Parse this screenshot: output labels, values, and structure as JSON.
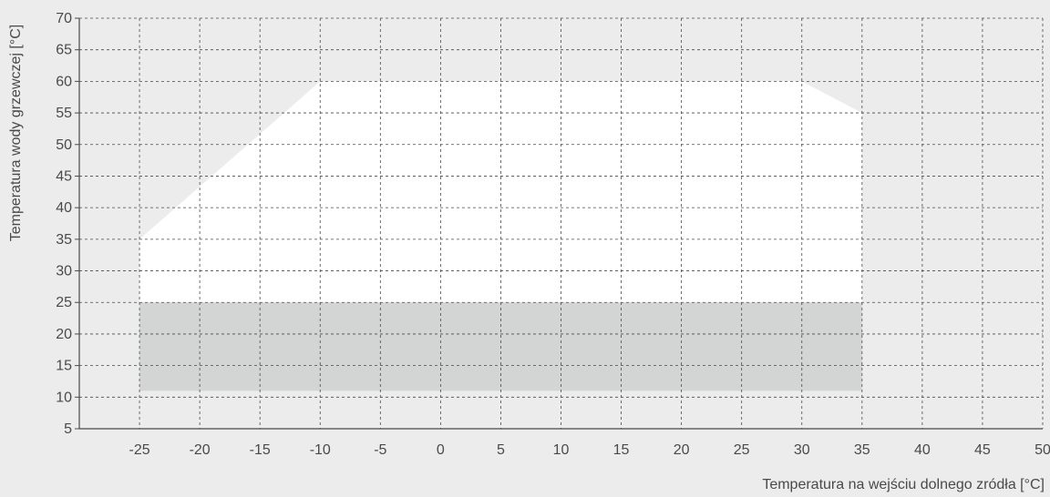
{
  "chart_data": {
    "type": "area",
    "title": "",
    "xlabel": "Temperatura na wejściu dolnego zródła [°C]",
    "ylabel": "Temperatura wody grzewczej [°C]",
    "xlim": [
      -30,
      50
    ],
    "ylim": [
      5,
      70
    ],
    "x_ticks": [
      -25,
      -20,
      -15,
      -10,
      -5,
      0,
      5,
      10,
      15,
      20,
      25,
      30,
      35,
      40,
      45,
      50
    ],
    "y_ticks": [
      5,
      10,
      15,
      20,
      25,
      30,
      35,
      40,
      45,
      50,
      55,
      60,
      65,
      70
    ],
    "grid": true,
    "series": [
      {
        "points": [
          [
            -25,
            35
          ],
          [
            -10,
            60
          ],
          [
            30,
            60
          ],
          [
            35,
            55
          ],
          [
            35,
            25
          ],
          [
            -25,
            25
          ]
        ],
        "color": "#ffffff"
      },
      {
        "points": [
          [
            -25,
            25
          ],
          [
            35,
            25
          ],
          [
            35,
            11
          ],
          [
            -25,
            11
          ]
        ],
        "color": "#d3d5d4"
      }
    ],
    "colors": {
      "background": "#ececec",
      "grid": "#4a4a4a",
      "axis": "#4a4a4a",
      "text": "#4a4a4a"
    }
  }
}
